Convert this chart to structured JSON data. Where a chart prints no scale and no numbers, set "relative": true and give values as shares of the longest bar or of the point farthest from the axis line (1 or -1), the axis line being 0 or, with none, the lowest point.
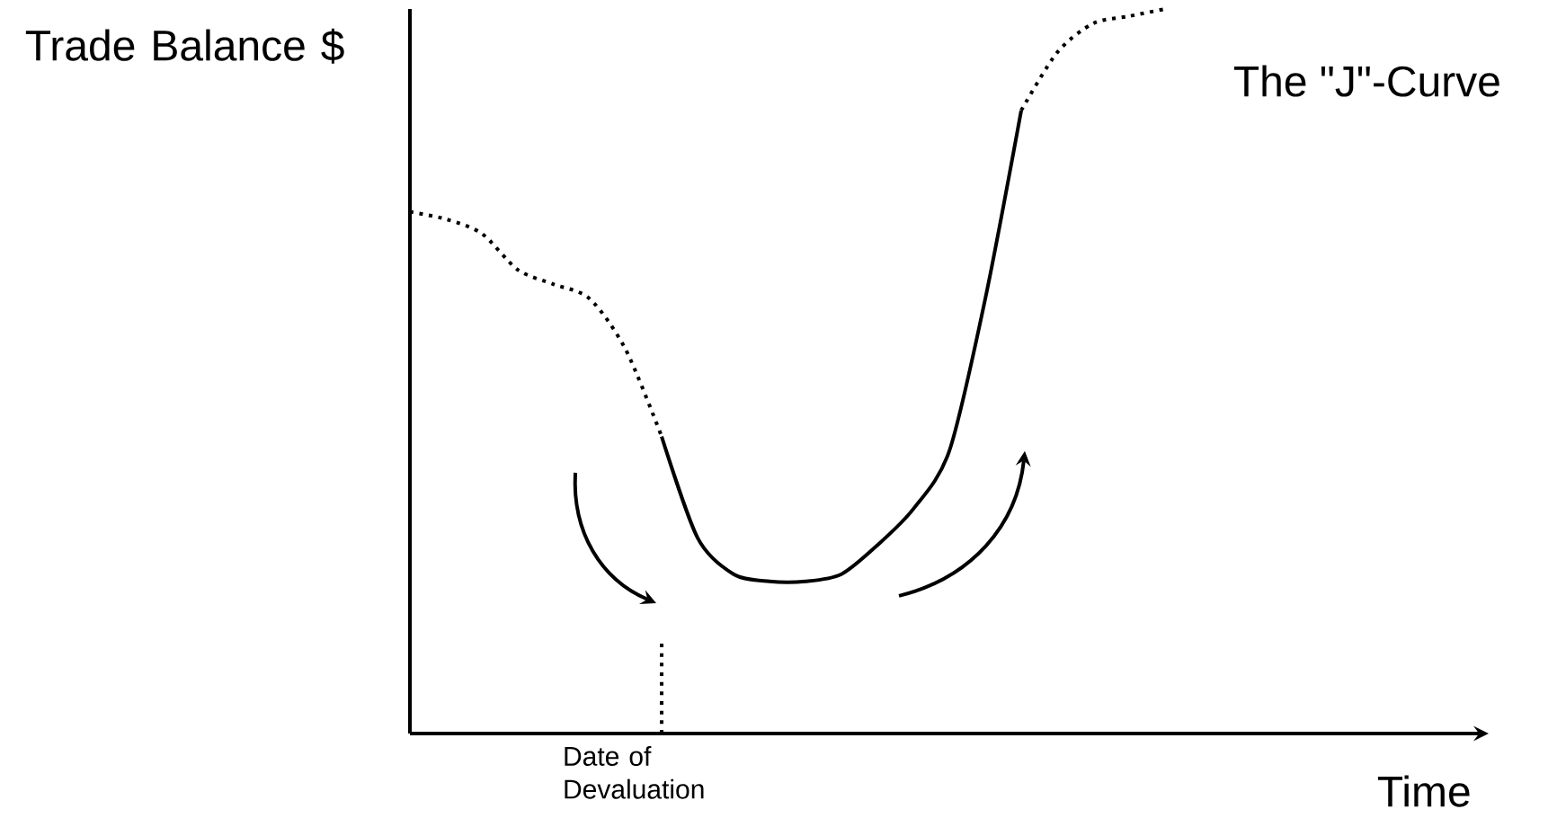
{
  "chart_data": {
    "type": "line",
    "relative": true,
    "title": "The \"J\"-Curve",
    "ylabel": "Trade Balance $",
    "xlabel": "Time",
    "categories": [
      null,
      null,
      null,
      null,
      null,
      null,
      null,
      null,
      null,
      null,
      null,
      null,
      null,
      null,
      null,
      null,
      null,
      null,
      null,
      null,
      null,
      null,
      null,
      null,
      null,
      null,
      null,
      null,
      null,
      null,
      null
    ],
    "series": [
      {
        "color": "#000000",
        "line_style": "dotted",
        "values": [
          0.72,
          0.71,
          0.69,
          0.64,
          0.62,
          0.6,
          0.53,
          0.41,
          null,
          null,
          null,
          null,
          null,
          null,
          null,
          null,
          null,
          null,
          null,
          null,
          null,
          null,
          null,
          null,
          null,
          null,
          null,
          null,
          null,
          null,
          null
        ]
      },
      {
        "color": "#000000",
        "line_style": "solid",
        "values": [
          null,
          null,
          null,
          null,
          null,
          null,
          null,
          0.41,
          0.27,
          0.22,
          0.21,
          0.21,
          0.22,
          0.26,
          0.31,
          0.39,
          0.6,
          0.86,
          null,
          null,
          null,
          null,
          null,
          null,
          null,
          null,
          null,
          null,
          null,
          null,
          null
        ]
      },
      {
        "color": "#000000",
        "line_style": "dotted",
        "values": [
          null,
          null,
          null,
          null,
          null,
          null,
          null,
          null,
          null,
          null,
          null,
          null,
          null,
          null,
          null,
          null,
          null,
          0.86,
          0.94,
          0.98,
          0.99,
          1.0,
          null,
          null,
          null,
          null,
          null,
          null,
          null,
          null,
          null
        ]
      }
    ],
    "annotations": [
      "Date of Devaluation"
    ]
  }
}
